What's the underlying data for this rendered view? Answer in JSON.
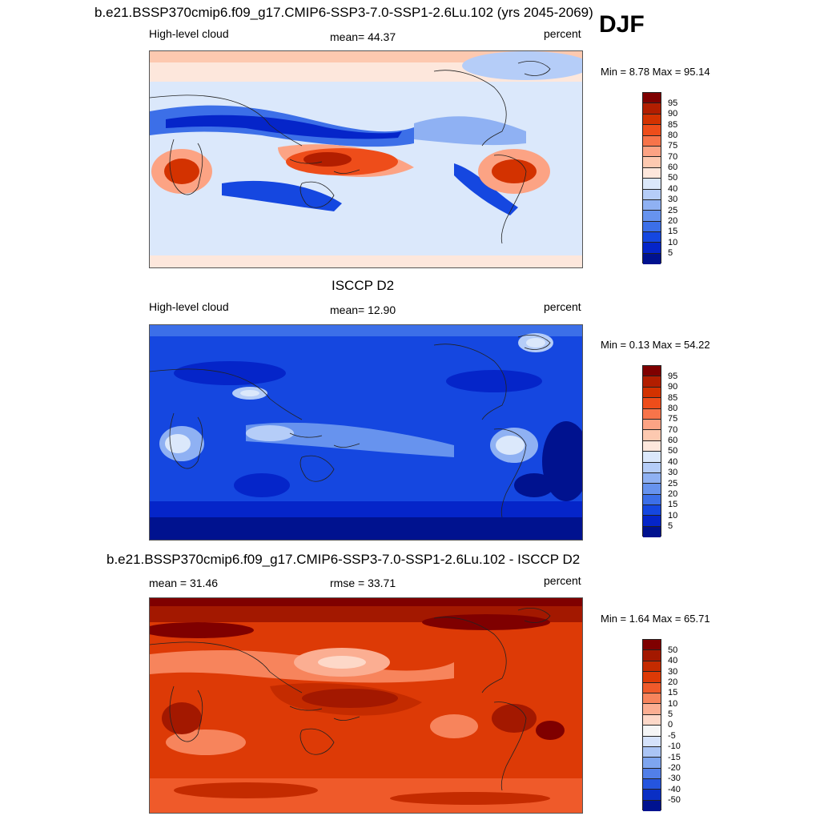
{
  "season": "DJF",
  "panels": [
    {
      "title": "b.e21.BSSP370cmip6.f09_g17.CMIP6-SSP3-7.0-SSP1-2.6Lu.102 (yrs 2045-2069)",
      "left_label": "High-level cloud",
      "center_label": "mean=  44.37",
      "right_label": "percent",
      "minmax": "Min =   8.78 Max =  95.14",
      "colorbar_labels": [
        "95",
        "90",
        "85",
        "80",
        "75",
        "70",
        "60",
        "50",
        "40",
        "30",
        "25",
        "20",
        "15",
        "10",
        "5"
      ],
      "colorbar_colors": [
        "#7f0000",
        "#b21e00",
        "#d33200",
        "#ee4d1a",
        "#f7744a",
        "#fca384",
        "#fdc9b0",
        "#fde7dc",
        "#dbe8fb",
        "#b5cdf8",
        "#8fb1f3",
        "#6793ee",
        "#3c6fe8",
        "#1547e0",
        "#0525c9",
        "#00128f"
      ]
    },
    {
      "title": "ISCCP D2",
      "left_label": "High-level cloud",
      "center_label": "mean=  12.90",
      "right_label": "percent",
      "minmax": "Min =   0.13 Max =  54.22",
      "colorbar_labels": [
        "95",
        "90",
        "85",
        "80",
        "75",
        "70",
        "60",
        "50",
        "40",
        "30",
        "25",
        "20",
        "15",
        "10",
        "5"
      ],
      "colorbar_colors": [
        "#7f0000",
        "#b21e00",
        "#d33200",
        "#ee4d1a",
        "#f7744a",
        "#fca384",
        "#fdc9b0",
        "#fde7dc",
        "#dbe8fb",
        "#b5cdf8",
        "#8fb1f3",
        "#6793ee",
        "#3c6fe8",
        "#1547e0",
        "#0525c9",
        "#00128f"
      ]
    },
    {
      "title": "b.e21.BSSP370cmip6.f09_g17.CMIP6-SSP3-7.0-SSP1-2.6Lu.102 - ISCCP D2",
      "left_label": "mean =  31.46",
      "center_label": "rmse =  33.71",
      "right_label": "percent",
      "minmax": "Min =   1.64 Max =  65.71",
      "colorbar_labels": [
        "50",
        "40",
        "30",
        "20",
        "15",
        "10",
        "5",
        "0",
        "-5",
        "-10",
        "-15",
        "-20",
        "-30",
        "-40",
        "-50"
      ],
      "colorbar_colors": [
        "#7f0000",
        "#a31800",
        "#c42b00",
        "#dd3a06",
        "#ef5a2a",
        "#f7845c",
        "#fbae92",
        "#fdd8c8",
        "#f5f5f5",
        "#d5e2fa",
        "#abc5f5",
        "#7ea5ef",
        "#527fe8",
        "#2555df",
        "#0a2fc4",
        "#00128f"
      ]
    }
  ]
}
